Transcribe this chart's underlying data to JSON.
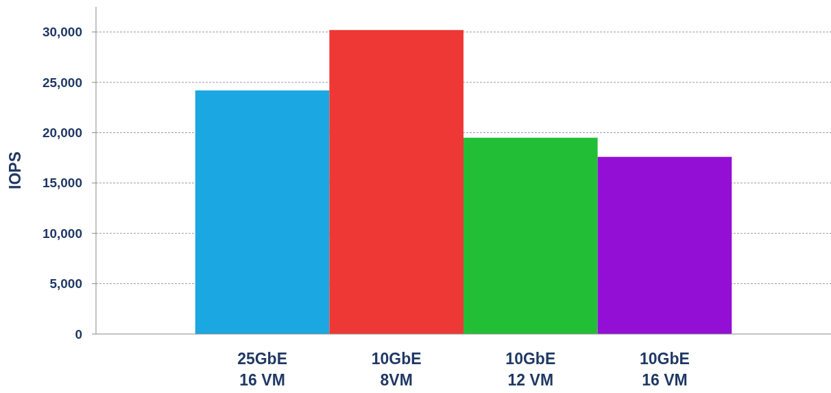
{
  "chart_data": {
    "type": "bar",
    "ylabel": "IOPS",
    "categories": [
      "25GbE\n16 VM",
      "10GbE\n8VM",
      "10GbE\n12 VM",
      "10GbE\n16 VM"
    ],
    "values": [
      24200,
      30200,
      19500,
      17600
    ],
    "colors": [
      "#1ba7e1",
      "#ee3835",
      "#22bf36",
      "#930fd6"
    ],
    "ylim": [
      0,
      32500
    ],
    "yticks": [
      {
        "value": 0,
        "label": "0"
      },
      {
        "value": 5000,
        "label": "5,000"
      },
      {
        "value": 10000,
        "label": "10,000"
      },
      {
        "value": 15000,
        "label": "15,000"
      },
      {
        "value": 20000,
        "label": "20,000"
      },
      {
        "value": 25000,
        "label": "25,000"
      },
      {
        "value": 30000,
        "label": "30,000"
      }
    ],
    "grid": "y"
  }
}
